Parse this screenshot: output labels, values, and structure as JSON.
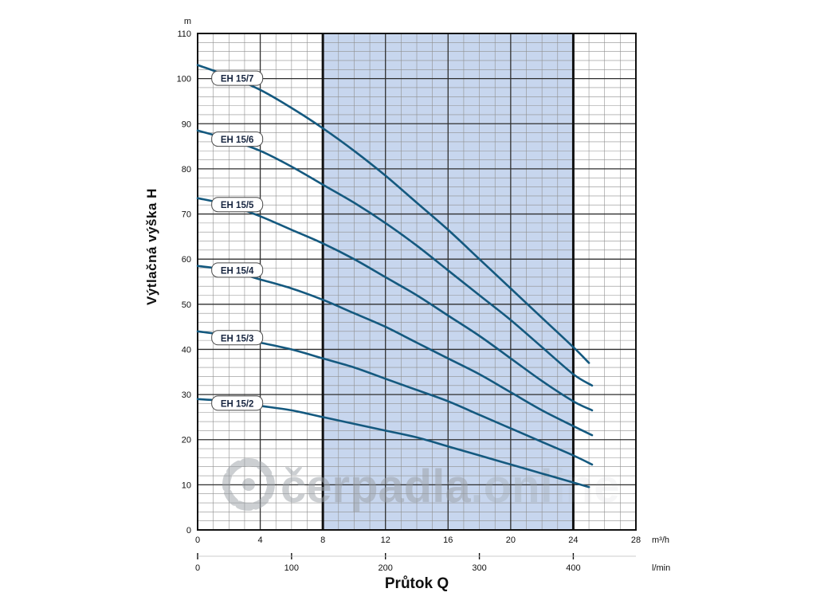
{
  "chart_data": {
    "type": "line",
    "title": "",
    "xlabel": "Průtok Q",
    "ylabel": "Výtlačná výška H",
    "units": {
      "y": "m",
      "x_primary": "m³/h",
      "x_secondary": "l/min"
    },
    "xlim": [
      0,
      28
    ],
    "ylim": [
      0,
      110
    ],
    "x_ticks_m3h": [
      0,
      4,
      8,
      12,
      16,
      20,
      24,
      28
    ],
    "y_ticks": [
      0,
      10,
      20,
      30,
      40,
      50,
      60,
      70,
      80,
      90,
      100,
      110
    ],
    "x_ticks_lmin": [
      0,
      100,
      200,
      300,
      400
    ],
    "lmin_max_at_m3h": {
      "lmin": 400,
      "m3h": 24
    },
    "grid": {
      "minor_x_step": 1,
      "minor_y_step": 2,
      "major_x_step": 4,
      "major_y_step": 10,
      "grid_on": true
    },
    "shaded_band": {
      "x_from": 8,
      "x_to": 24,
      "color": "#c7d6ee"
    },
    "curve_color": "#14597f",
    "label_box": {
      "x": 0.9,
      "text_color": "#16243f",
      "border_color": "#4a4a4a",
      "fill": "#ffffff"
    },
    "series": [
      {
        "name": "EH 15/7",
        "label_y": 100,
        "points": [
          [
            0,
            103
          ],
          [
            2,
            100.5
          ],
          [
            4,
            97.5
          ],
          [
            6,
            93.5
          ],
          [
            8,
            89
          ],
          [
            10,
            84
          ],
          [
            12,
            78.5
          ],
          [
            14,
            72.5
          ],
          [
            16,
            66.5
          ],
          [
            18,
            60
          ],
          [
            20,
            53.5
          ],
          [
            22,
            47
          ],
          [
            24,
            40.5
          ],
          [
            25,
            37
          ]
        ]
      },
      {
        "name": "EH 15/6",
        "label_y": 86.5,
        "points": [
          [
            0,
            88.5
          ],
          [
            2,
            86.5
          ],
          [
            4,
            84
          ],
          [
            6,
            80.5
          ],
          [
            8,
            76.5
          ],
          [
            10,
            72.5
          ],
          [
            12,
            68
          ],
          [
            14,
            63
          ],
          [
            16,
            57.5
          ],
          [
            18,
            52
          ],
          [
            20,
            46.5
          ],
          [
            22,
            40.5
          ],
          [
            24,
            34.5
          ],
          [
            25.2,
            32
          ]
        ]
      },
      {
        "name": "EH 15/5",
        "label_y": 72,
        "points": [
          [
            0,
            73.5
          ],
          [
            2,
            72
          ],
          [
            4,
            69.5
          ],
          [
            6,
            66.5
          ],
          [
            8,
            63.5
          ],
          [
            10,
            60
          ],
          [
            12,
            56
          ],
          [
            14,
            52
          ],
          [
            16,
            47.5
          ],
          [
            18,
            43
          ],
          [
            20,
            38
          ],
          [
            22,
            33
          ],
          [
            24,
            28.5
          ],
          [
            25.2,
            26.5
          ]
        ]
      },
      {
        "name": "EH 15/4",
        "label_y": 57.5,
        "points": [
          [
            0,
            58.5
          ],
          [
            2,
            57.5
          ],
          [
            4,
            55.5
          ],
          [
            6,
            53.5
          ],
          [
            8,
            51
          ],
          [
            10,
            48
          ],
          [
            12,
            45
          ],
          [
            14,
            41.5
          ],
          [
            16,
            38
          ],
          [
            18,
            34.5
          ],
          [
            20,
            30.5
          ],
          [
            22,
            26.5
          ],
          [
            24,
            23
          ],
          [
            25.2,
            21
          ]
        ]
      },
      {
        "name": "EH 15/3",
        "label_y": 42.5,
        "points": [
          [
            0,
            44
          ],
          [
            2,
            43
          ],
          [
            4,
            41.5
          ],
          [
            6,
            40
          ],
          [
            8,
            38
          ],
          [
            10,
            36
          ],
          [
            12,
            33.5
          ],
          [
            14,
            31
          ],
          [
            16,
            28.5
          ],
          [
            18,
            25.5
          ],
          [
            20,
            22.5
          ],
          [
            22,
            19.5
          ],
          [
            24,
            16.5
          ],
          [
            25.2,
            14.5
          ]
        ]
      },
      {
        "name": "EH 15/2",
        "label_y": 28,
        "points": [
          [
            0,
            29
          ],
          [
            2,
            28.5
          ],
          [
            4,
            27.5
          ],
          [
            6,
            26.5
          ],
          [
            8,
            25
          ],
          [
            10,
            23.5
          ],
          [
            12,
            22
          ],
          [
            14,
            20.5
          ],
          [
            16,
            18.5
          ],
          [
            18,
            16.5
          ],
          [
            20,
            14.5
          ],
          [
            22,
            12.5
          ],
          [
            24,
            10.5
          ],
          [
            25,
            9.5
          ]
        ]
      }
    ]
  },
  "watermark": {
    "text": "čerpadla",
    "suffix": ".onl",
    "color": "#9aa0a6"
  }
}
